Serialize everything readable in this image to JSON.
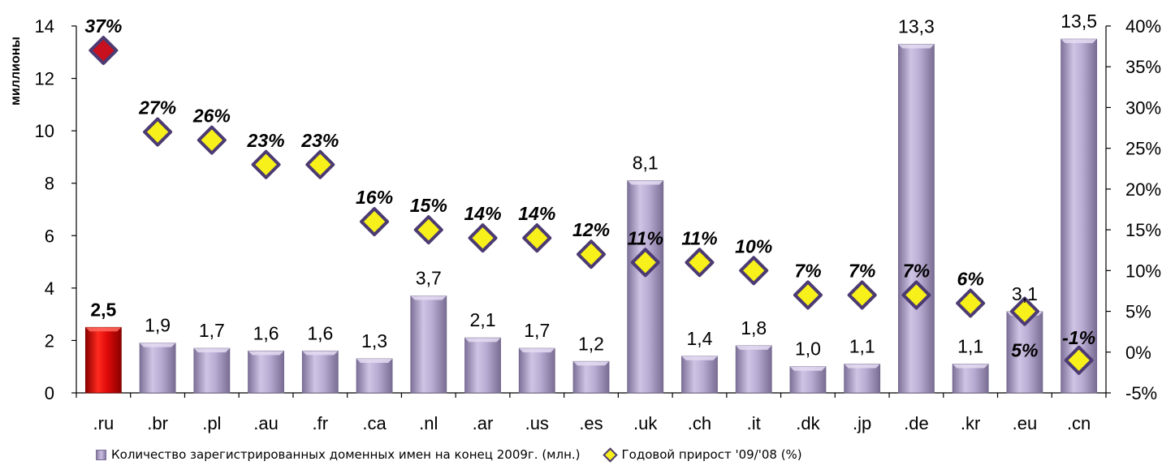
{
  "chart_data": {
    "type": "bar",
    "categories": [
      ".ru",
      ".br",
      ".pl",
      ".au",
      ".fr",
      ".ca",
      ".nl",
      ".ar",
      ".us",
      ".es",
      ".uk",
      ".ch",
      ".it",
      ".dk",
      ".jp",
      ".de",
      ".kr",
      ".eu",
      ".cn"
    ],
    "series": [
      {
        "name": "Количество зарегистрированных доменных имен на конец 2009г. (млн.)",
        "kind": "bar",
        "axis": "left",
        "values": [
          2.5,
          1.9,
          1.7,
          1.6,
          1.6,
          1.3,
          3.7,
          2.1,
          1.7,
          1.2,
          8.1,
          1.4,
          1.8,
          1.0,
          1.1,
          13.3,
          1.1,
          3.1,
          13.5
        ],
        "labels": [
          "2,5",
          "1,9",
          "1,7",
          "1,6",
          "1,6",
          "1,3",
          "3,7",
          "2,1",
          "1,7",
          "1,2",
          "8,1",
          "1,4",
          "1,8",
          "1,0",
          "1,1",
          "13,3",
          "1,1",
          "3,1",
          "13,5"
        ]
      },
      {
        "name": "Годовой прирост '09/'08 (%)",
        "kind": "scatter",
        "axis": "right",
        "values": [
          37,
          27,
          26,
          23,
          23,
          16,
          15,
          14,
          14,
          12,
          11,
          11,
          10,
          7,
          7,
          7,
          6,
          5,
          -1
        ],
        "labels": [
          "37%",
          "27%",
          "26%",
          "23%",
          "23%",
          "16%",
          "15%",
          "14%",
          "14%",
          "12%",
          "11%",
          "11%",
          "10%",
          "7%",
          "7%",
          "7%",
          "6%",
          "5%",
          "-1%"
        ]
      }
    ],
    "ylabel": "миллионы",
    "ylim": [
      0,
      14
    ],
    "yticks": [
      "0",
      "2",
      "4",
      "6",
      "8",
      "10",
      "12",
      "14"
    ],
    "y2lim": [
      -5,
      40
    ],
    "y2ticks": [
      "-5%",
      "0%",
      "5%",
      "10%",
      "15%",
      "20%",
      "25%",
      "30%",
      "35%",
      "40%"
    ],
    "grid": false,
    "legend_position": "bottom",
    "highlight_category": ".ru",
    "colors": {
      "bar": "#b4a7cf",
      "bar_highlight": "#d40000",
      "marker": "#f7f01a",
      "marker_highlight": "#c8101e",
      "marker_border": "#4c3b73",
      "highlight_text": "#ff0000"
    }
  },
  "legend": {
    "bar_label": "Количество зарегистрированных доменных имен на конец 2009г. (млн.)",
    "marker_label": "Годовой прирост '09/'08 (%)"
  }
}
